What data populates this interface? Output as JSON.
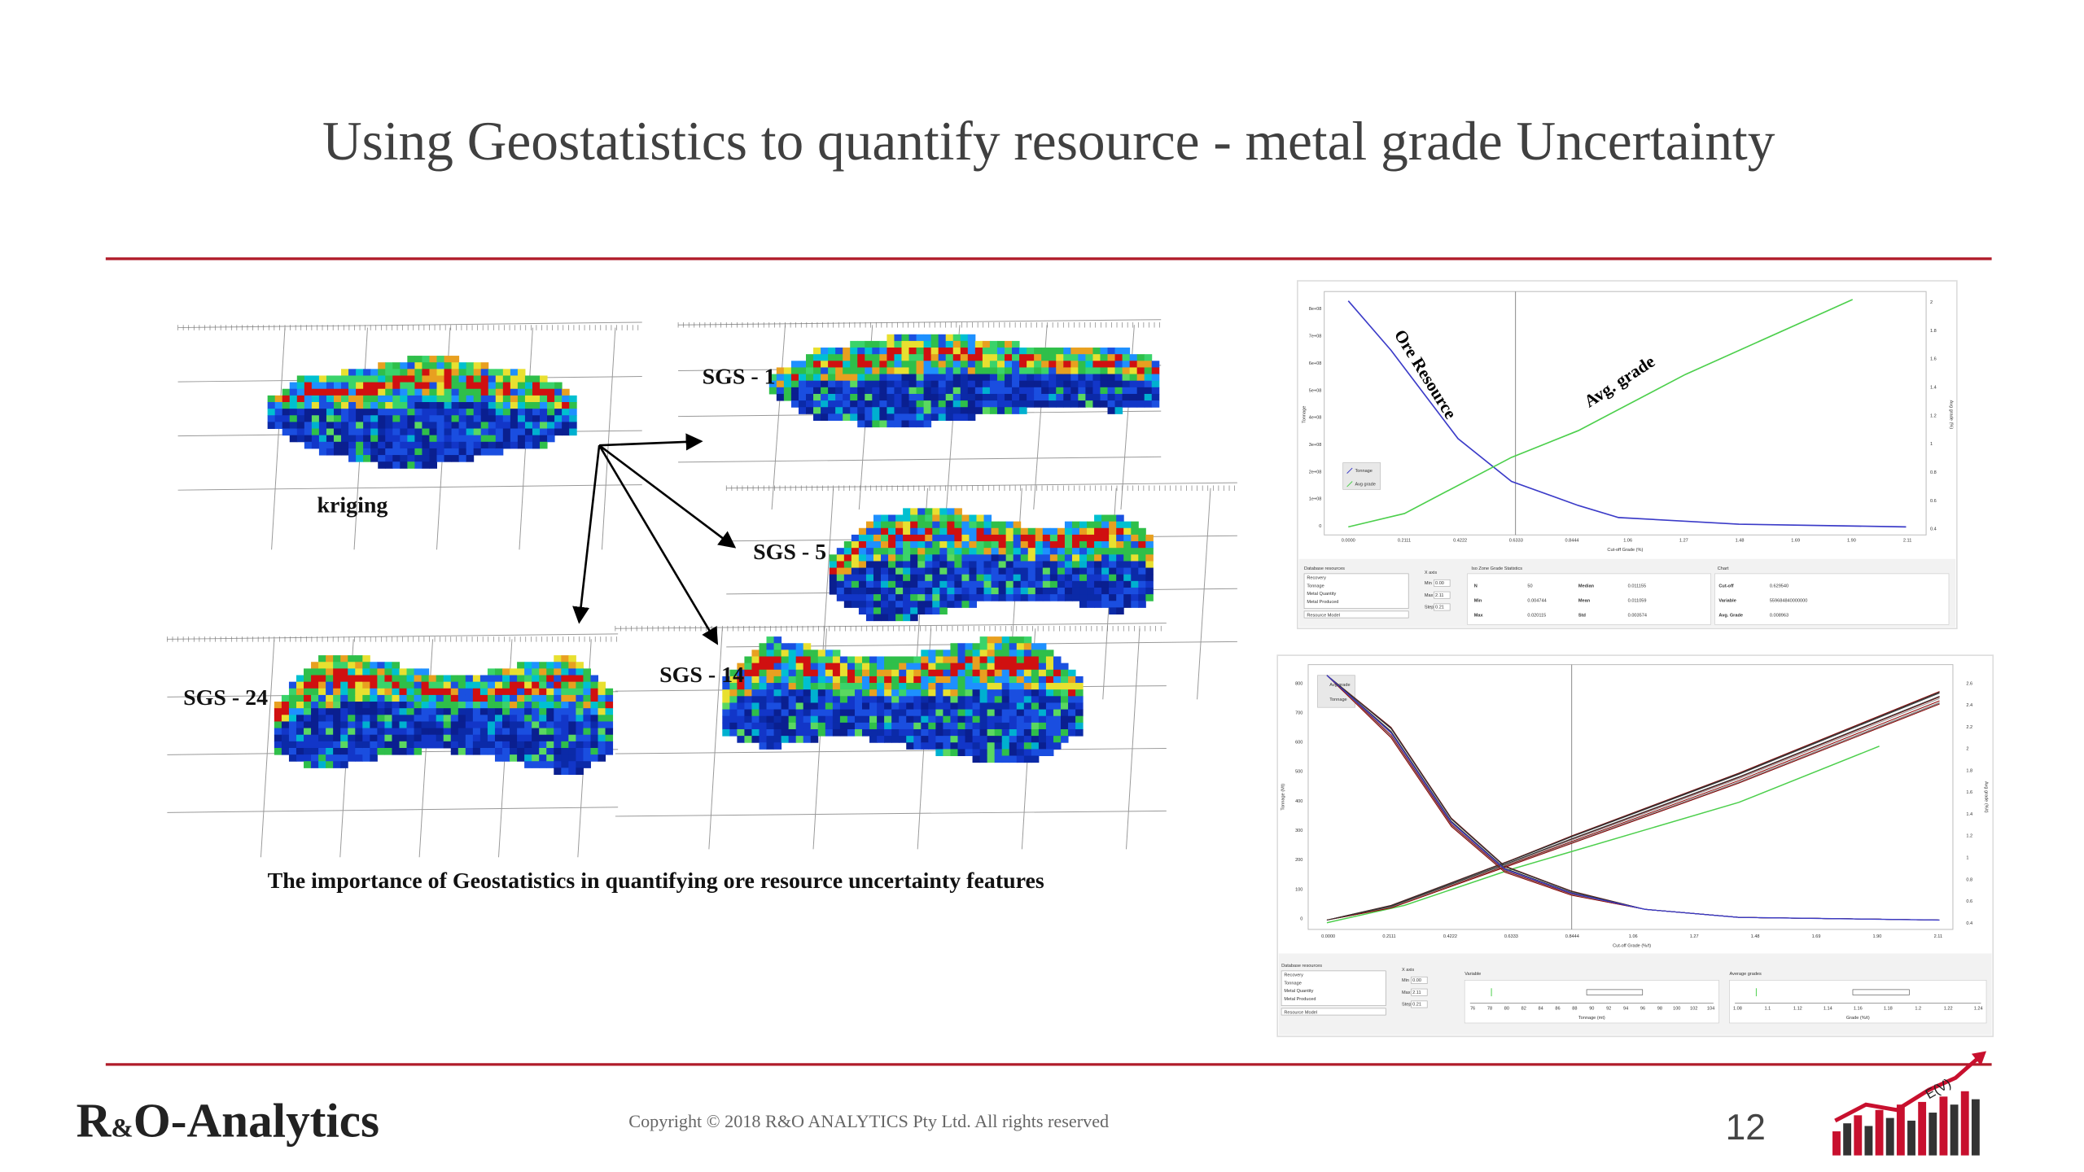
{
  "header": {
    "title": "Using Geostatistics to quantify resource - metal grade Uncertainty"
  },
  "models": [
    {
      "label": "kriging"
    },
    {
      "label": "SGS - 1"
    },
    {
      "label": "SGS - 5"
    },
    {
      "label": "SGS - 24"
    },
    {
      "label": "SGS - 14"
    }
  ],
  "caption": "The importance of Geostatistics in quantifying ore resource uncertainty features",
  "top_chart": {
    "y_label": "Tonnage",
    "y2_label": "Avg grade (%)",
    "x_label": "Cut-off Grade (%)",
    "y_ticks": [
      "8e+08",
      "7e+08",
      "6e+08",
      "5e+08",
      "4e+08",
      "3e+08",
      "2e+08",
      "1e+08",
      "0"
    ],
    "y2_ticks": [
      "2",
      "1.8",
      "1.6",
      "1.4",
      "1.2",
      "1",
      "0.8",
      "0.6",
      "0.4"
    ],
    "x_ticks": [
      "0.0000",
      "0.2111",
      "0.4222",
      "0.6333",
      "0.8444",
      "1.06",
      "1.27",
      "1.48",
      "1.69",
      "1.90",
      "2.11"
    ],
    "legend": [
      "Tonnage",
      "Avg grade"
    ],
    "annotations": [
      "Ore Resource",
      "Avg. grade"
    ],
    "panel": {
      "database_title": "Database resources",
      "database_items": [
        "Recovery",
        "Tonnage",
        "Metal Quantity",
        "Metal Produced"
      ],
      "model_select": "Resource Model",
      "x_axis_title": "X axis",
      "x_axis_fields": [
        [
          "Min",
          "0.00"
        ],
        [
          "Max",
          "2.11"
        ],
        [
          "Step",
          "0.21"
        ]
      ],
      "stats_title": "Iso Zone Grade Statistics",
      "stats": [
        [
          "N",
          "50",
          "Median",
          "0.011155"
        ],
        [
          "Min",
          "0.004744",
          "Mean",
          "0.011059"
        ],
        [
          "Max",
          "0.020115",
          "Std",
          "0.003574"
        ]
      ],
      "chart_title": "Chart",
      "chart_fields": [
        [
          "Cut-off",
          "0.629540"
        ],
        [
          "Variable",
          "559684840000000"
        ],
        [
          "Avg. Grade",
          "0.008963"
        ]
      ]
    }
  },
  "bottom_chart": {
    "y_label": "Tonnage (Mt)",
    "y2_label": "Avg grade (%/t)",
    "x_label": "Cut-off Grade (%/t)",
    "y_ticks": [
      "800",
      "700",
      "600",
      "500",
      "400",
      "300",
      "200",
      "100",
      "0"
    ],
    "y2_ticks": [
      "2.6",
      "2.4",
      "2.2",
      "2",
      "1.8",
      "1.6",
      "1.4",
      "1.2",
      "1",
      "0.8",
      "0.6",
      "0.4"
    ],
    "x_ticks": [
      "0.0000",
      "0.2111",
      "0.4222",
      "0.6333",
      "0.8444",
      "1.06",
      "1.27",
      "1.48",
      "1.69",
      "1.90",
      "2.11"
    ],
    "legend": [
      "Avg grade",
      "Tonnage"
    ],
    "panel": {
      "database_title": "Database resources",
      "database_items": [
        "Recovery",
        "Tonnage",
        "Metal Quantity",
        "Metal Produced"
      ],
      "model_select": "Resource Model",
      "x_axis_title": "X axis",
      "x_axis_fields": [
        [
          "Min",
          "0.00"
        ],
        [
          "Max",
          "2.11"
        ],
        [
          "Step",
          "0.21"
        ]
      ],
      "variable_title": "Variable",
      "variable_ticks": [
        "76",
        "78",
        "80",
        "82",
        "84",
        "86",
        "88",
        "90",
        "92",
        "94",
        "96",
        "98",
        "100",
        "102",
        "104"
      ],
      "variable_label": "Tonnage (mt)",
      "grades_title": "Average grades",
      "grades_ticks": [
        "1.08",
        "1.1",
        "1.12",
        "1.14",
        "1.16",
        "1.18",
        "1.2",
        "1.22",
        "1.24"
      ],
      "grades_label": "Grade (%/t)"
    }
  },
  "footer": {
    "brand_parts": [
      "R",
      "&",
      "O-Analytics"
    ],
    "copyright": "Copyright © 2018 R&O ANALYTICS Pty Ltd. All rights reserved",
    "page": "12",
    "logo_text": "E(V)"
  }
}
